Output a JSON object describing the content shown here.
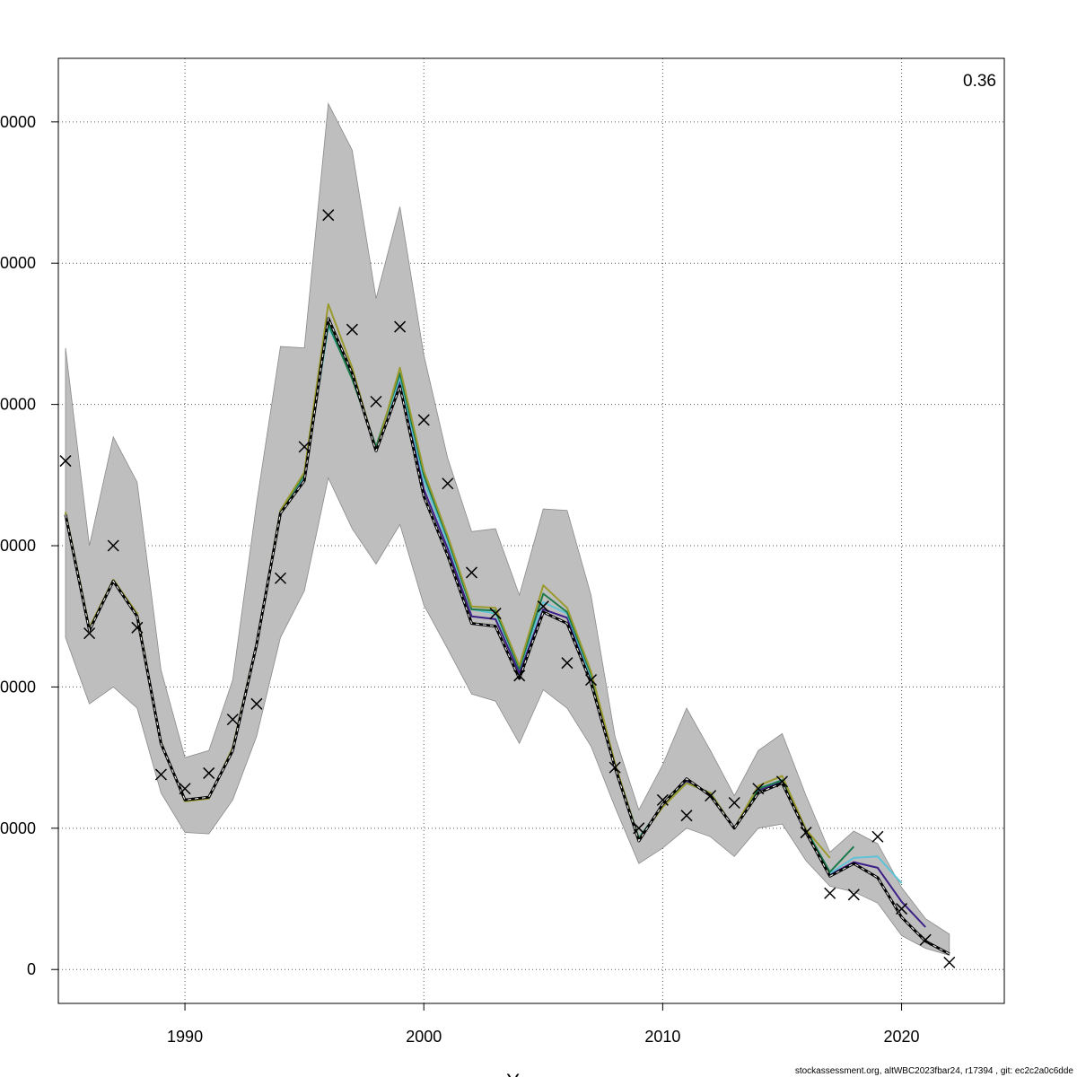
{
  "chart_data": {
    "type": "line",
    "title": "",
    "xlabel": "Years",
    "ylabel": "",
    "corner_label": "0.36",
    "footer": "stockassessment.org, altWBC2023fbar24, r17394 , git: ec2c2a0c6dde",
    "xlim": [
      1984.7,
      2024.3
    ],
    "ylim": [
      -2400,
      64500
    ],
    "x_ticks": [
      1990,
      2000,
      2010,
      2020
    ],
    "x_tick_labels": [
      "1990",
      "2000",
      "2010",
      "2020"
    ],
    "y_ticks": [
      0,
      10000,
      20000,
      30000,
      40000,
      50000,
      60000
    ],
    "y_tick_labels": [
      "0",
      "0000",
      "0000",
      "0000",
      "0000",
      "0000",
      "0000"
    ],
    "grid": true,
    "colors": {
      "band": "#bebebe",
      "main_line": "#000000",
      "observed_marker": "#000000",
      "grid": "#555555"
    },
    "confidence_band": {
      "x": [
        1985,
        1986,
        1987,
        1988,
        1989,
        1990,
        1991,
        1992,
        1993,
        1994,
        1995,
        1996,
        1997,
        1998,
        1999,
        2000,
        2001,
        2002,
        2003,
        2004,
        2005,
        2006,
        2007,
        2008,
        2009,
        2010,
        2011,
        2012,
        2013,
        2014,
        2015,
        2016,
        2017,
        2018,
        2019,
        2020,
        2021,
        2022
      ],
      "upper": [
        44000,
        30000,
        37700,
        34500,
        21200,
        15000,
        15500,
        20500,
        33000,
        44100,
        44000,
        61300,
        58000,
        47500,
        54000,
        43500,
        36200,
        31000,
        31200,
        26500,
        32600,
        32500,
        26500,
        16500,
        11300,
        14500,
        18500,
        15500,
        12300,
        15500,
        16700,
        12300,
        8300,
        9800,
        8900,
        5800,
        3600,
        2500
      ],
      "lower": [
        23500,
        18800,
        20000,
        18500,
        12500,
        9700,
        9600,
        12000,
        16500,
        23500,
        26800,
        34800,
        31200,
        28700,
        31500,
        25800,
        22700,
        19500,
        19000,
        16000,
        19800,
        18500,
        15800,
        11500,
        7500,
        8600,
        10000,
        9400,
        8000,
        10000,
        10300,
        7700,
        5900,
        5500,
        4700,
        2400,
        1500,
        1000
      ]
    },
    "series": [
      {
        "color": "#000000",
        "dashed": true,
        "x": [
          1985,
          1986,
          1987,
          1988,
          1989,
          1990,
          1991,
          1992,
          1993,
          1994,
          1995,
          1996,
          1997,
          1998,
          1999,
          2000,
          2001,
          2002,
          2003,
          2004,
          2005,
          2006,
          2007,
          2008,
          2009,
          2010,
          2011,
          2012,
          2013,
          2014,
          2015,
          2016,
          2017,
          2018,
          2019,
          2020,
          2021,
          2022
        ],
        "values": [
          32200,
          24000,
          27500,
          25000,
          16000,
          12000,
          12200,
          15500,
          23000,
          32300,
          34600,
          46100,
          42200,
          36700,
          41300,
          33500,
          29300,
          24500,
          24300,
          20600,
          25300,
          24500,
          20300,
          14300,
          9100,
          11700,
          13500,
          12300,
          10000,
          12500,
          13200,
          9700,
          6600,
          7500,
          6500,
          3700,
          2000,
          1100
        ]
      },
      {
        "color": "#3c1f86",
        "dashed": false,
        "x": [
          1985,
          1986,
          1987,
          1988,
          1989,
          1990,
          1991,
          1992,
          1993,
          1994,
          1995,
          1996,
          1997,
          1998,
          1999,
          2000,
          2001,
          2002,
          2003,
          2004,
          2005,
          2006,
          2007,
          2008,
          2009,
          2010,
          2011,
          2012,
          2013,
          2014,
          2015,
          2016,
          2017,
          2018,
          2019,
          2020,
          2021
        ],
        "values": [
          32200,
          24000,
          27500,
          25000,
          16000,
          12000,
          12200,
          15500,
          23000,
          32400,
          34800,
          45700,
          42300,
          36800,
          41700,
          34000,
          29800,
          25000,
          24800,
          21000,
          25500,
          24900,
          20500,
          14300,
          9200,
          11600,
          13300,
          12400,
          10000,
          12700,
          13300,
          9800,
          6700,
          7600,
          7200,
          4800,
          3000
        ]
      },
      {
        "color": "#5ec3d6",
        "dashed": false,
        "x": [
          1985,
          1986,
          1987,
          1988,
          1989,
          1990,
          1991,
          1992,
          1993,
          1994,
          1995,
          1996,
          1997,
          1998,
          1999,
          2000,
          2001,
          2002,
          2003,
          2004,
          2005,
          2006,
          2007,
          2008,
          2009,
          2010,
          2011,
          2012,
          2013,
          2014,
          2015,
          2016,
          2017,
          2018,
          2019,
          2020
        ],
        "values": [
          32200,
          24000,
          27500,
          25000,
          16000,
          12000,
          12200,
          15500,
          23000,
          32500,
          34900,
          45500,
          42000,
          36800,
          41900,
          34600,
          30200,
          25500,
          25200,
          21300,
          26000,
          25200,
          20700,
          14400,
          9300,
          11600,
          13200,
          12500,
          10000,
          12800,
          13400,
          9900,
          6800,
          7900,
          8000,
          6100
        ]
      },
      {
        "color": "#1b7a4a",
        "dashed": false,
        "x": [
          1985,
          1986,
          1987,
          1988,
          1989,
          1990,
          1991,
          1992,
          1993,
          1994,
          1995,
          1996,
          1997,
          1998,
          1999,
          2000,
          2001,
          2002,
          2003,
          2004,
          2005,
          2006,
          2007,
          2008,
          2009,
          2010,
          2011,
          2012,
          2013,
          2014,
          2015,
          2016,
          2017,
          2018
        ],
        "values": [
          32300,
          24100,
          27500,
          25100,
          16100,
          12000,
          12200,
          15600,
          23000,
          32500,
          35000,
          45700,
          41800,
          37000,
          42200,
          35000,
          30500,
          25500,
          25400,
          21300,
          26600,
          25300,
          20900,
          14500,
          9300,
          11600,
          13200,
          12500,
          10000,
          12800,
          13400,
          9900,
          6900,
          8700
        ]
      },
      {
        "color": "#9a9a2e",
        "dashed": false,
        "x": [
          1985,
          1986,
          1987,
          1988,
          1989,
          1990,
          1991,
          1992,
          1993,
          1994,
          1995,
          1996,
          1997,
          1998,
          1999,
          2000,
          2001,
          2002,
          2003,
          2004,
          2005,
          2006,
          2007,
          2008,
          2009,
          2010,
          2011,
          2012,
          2013,
          2014,
          2015,
          2016,
          2017
        ],
        "values": [
          32400,
          24200,
          27600,
          25200,
          16100,
          11900,
          12100,
          15700,
          23100,
          32500,
          35200,
          47100,
          42600,
          36700,
          42600,
          35300,
          30700,
          25700,
          25600,
          21500,
          27200,
          25600,
          21100,
          14600,
          9200,
          11500,
          13200,
          12500,
          10000,
          13000,
          13700,
          9900,
          7900
        ]
      }
    ],
    "observed": {
      "x": [
        1985,
        1986,
        1987,
        1988,
        1989,
        1990,
        1991,
        1992,
        1993,
        1994,
        1995,
        1996,
        1997,
        1998,
        1999,
        2000,
        2001,
        2002,
        2003,
        2004,
        2005,
        2006,
        2007,
        2008,
        2009,
        2010,
        2011,
        2012,
        2013,
        2014,
        2015,
        2016,
        2017,
        2018,
        2019,
        2020,
        2021,
        2022
      ],
      "values": [
        36000,
        23800,
        30000,
        24200,
        13800,
        12800,
        13900,
        17700,
        18800,
        27700,
        37000,
        53400,
        45300,
        40200,
        45500,
        38900,
        34400,
        28100,
        25200,
        20800,
        25700,
        21700,
        20500,
        14300,
        10000,
        12000,
        10900,
        12300,
        11800,
        12800,
        13300,
        9700,
        5400,
        5300,
        9400,
        4300,
        2100,
        500
      ]
    }
  }
}
